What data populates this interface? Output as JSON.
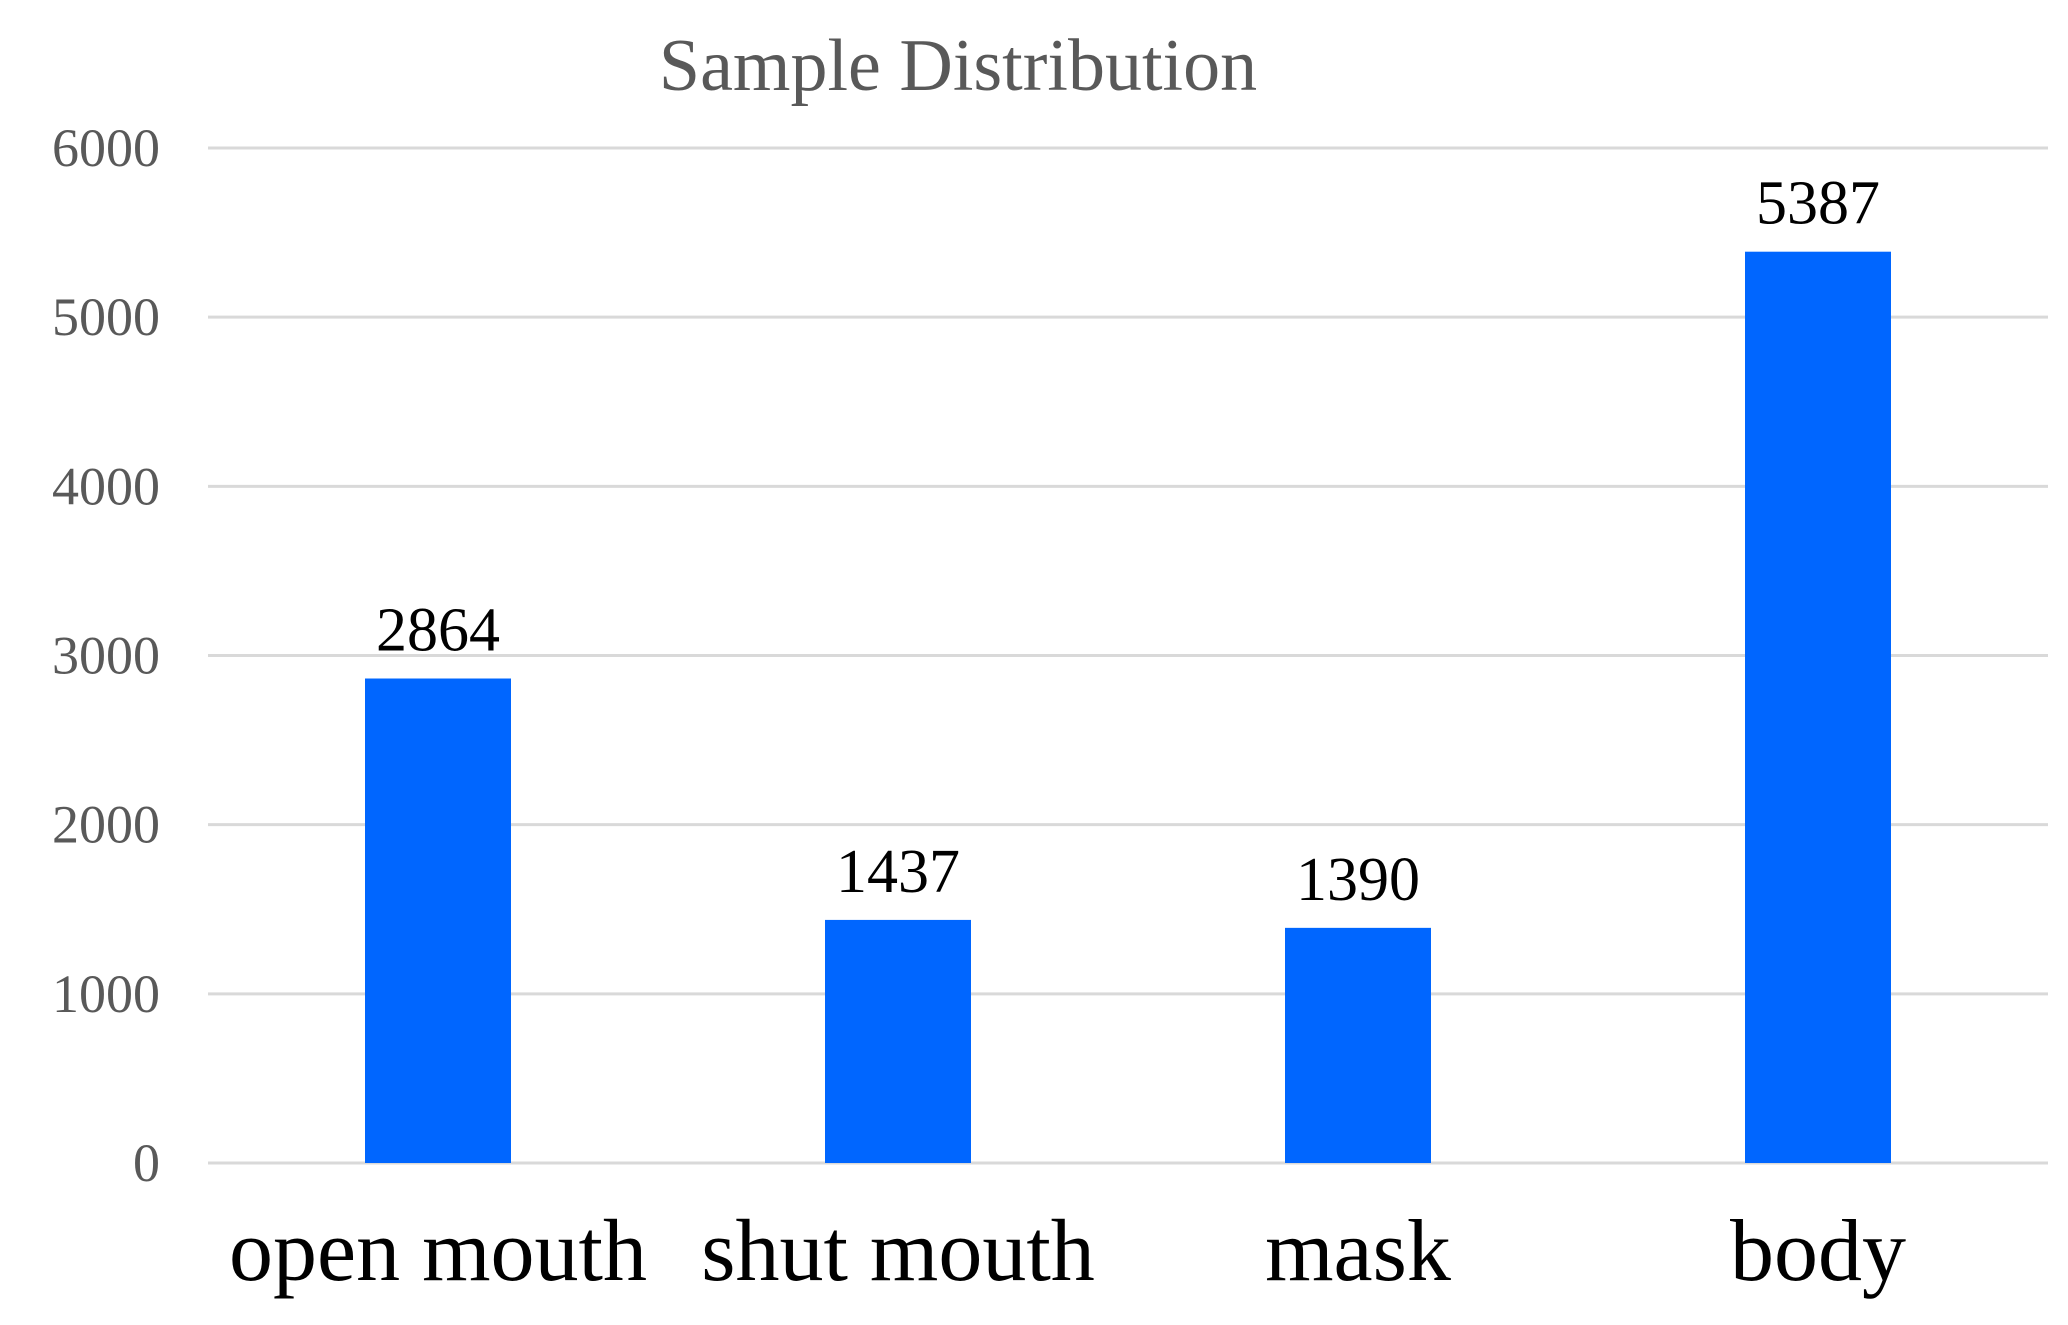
{
  "chart_data": {
    "type": "bar",
    "title": "Sample Distribution",
    "xlabel": "",
    "ylabel": "",
    "categories": [
      "open mouth",
      "shut mouth",
      "mask",
      "body"
    ],
    "values": [
      2864,
      1437,
      1390,
      5387
    ],
    "data_labels": [
      "2864",
      "1437",
      "1390",
      "5387"
    ],
    "ylim": [
      0,
      6000
    ],
    "yticks": [
      0,
      1000,
      2000,
      3000,
      4000,
      5000,
      6000
    ],
    "ytick_labels": [
      "0",
      "1000",
      "2000",
      "3000",
      "4000",
      "5000",
      "6000"
    ],
    "grid": true,
    "legend": "none",
    "bar_color": "#0066ff",
    "grid_color": "#d9d9d9"
  }
}
